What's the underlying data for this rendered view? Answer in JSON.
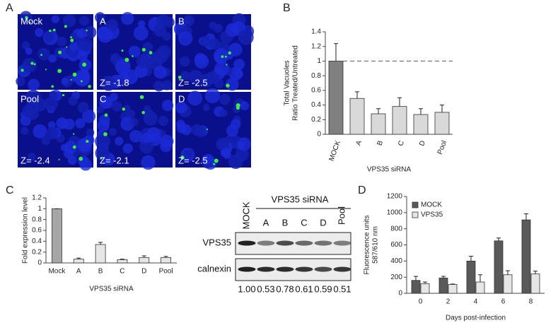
{
  "panel_labels": [
    "A",
    "B",
    "C",
    "D"
  ],
  "microscopy": {
    "tiles": [
      {
        "label": "Mock"
      },
      {
        "label": "A",
        "z": "Z= -1.8"
      },
      {
        "label": "B",
        "z": "Z= -2.5"
      },
      {
        "label": "Pool",
        "z": "Z= -2.4"
      },
      {
        "label": "C",
        "z": "Z= -2.1"
      },
      {
        "label": "D",
        "z": "Z= -2.5"
      }
    ]
  },
  "western_blot": {
    "header": "VPS35 siRNA",
    "lanes": [
      "MOCK",
      "A",
      "B",
      "C",
      "D",
      "Pool"
    ],
    "rows": [
      "VPS35",
      "calnexin"
    ],
    "quantification": [
      "1.00",
      "0.53",
      "0.78",
      "0.61",
      "0.59",
      "0.51"
    ]
  },
  "chart_data": [
    {
      "type": "bar",
      "ylabel": [
        "Total Vacuoles",
        "Ratio Treated/Untreated"
      ],
      "xlabel": "VPS35 siRNA",
      "categories": [
        "MOCK",
        "A",
        "B",
        "C",
        "D",
        "Pool"
      ],
      "values": [
        1.0,
        0.49,
        0.28,
        0.38,
        0.27,
        0.3
      ],
      "errors": [
        0.24,
        0.09,
        0.07,
        0.12,
        0.08,
        0.1
      ],
      "colors": [
        "#808080",
        "#d9d9d9",
        "#d9d9d9",
        "#d9d9d9",
        "#d9d9d9",
        "#d9d9d9"
      ],
      "reference_line": 1,
      "ylim": [
        0,
        1.4
      ],
      "yticks": [
        0,
        0.2,
        0.4,
        0.6,
        0.8,
        1,
        1.2,
        1.4
      ]
    },
    {
      "type": "bar",
      "ylabel": [
        "Fold expression level"
      ],
      "xlabel": "VPS35 siRNA",
      "categories": [
        "Mock",
        "A",
        "B",
        "C",
        "D",
        "Pool"
      ],
      "values": [
        1.0,
        0.07,
        0.34,
        0.06,
        0.1,
        0.1
      ],
      "errors": [
        0,
        0.02,
        0.04,
        0.01,
        0.03,
        0.02
      ],
      "colors": [
        "#a6a6a6",
        "#e6e6e6",
        "#e6e6e6",
        "#e6e6e6",
        "#e6e6e6",
        "#e6e6e6"
      ],
      "ylim": [
        0,
        1.2
      ],
      "yticks": [
        0,
        0.2,
        0.4,
        0.6,
        0.8,
        1,
        1.2
      ]
    },
    {
      "type": "grouped_bar",
      "ylabel": [
        "Fluorescence units",
        "587/610 nm"
      ],
      "xlabel": "Days post-infection",
      "categories": [
        "0",
        "2",
        "4",
        "6",
        "8"
      ],
      "series": [
        {
          "name": "MOCK",
          "color": "#595959",
          "values": [
            160,
            190,
            400,
            650,
            910
          ],
          "errors": [
            50,
            20,
            60,
            35,
            75
          ]
        },
        {
          "name": "VPS35",
          "color": "#e6e6e6",
          "values": [
            120,
            110,
            140,
            230,
            240
          ],
          "errors": [
            20,
            5,
            90,
            50,
            35
          ]
        }
      ],
      "legend": "upper left",
      "ylim": [
        0,
        1200
      ],
      "yticks": [
        0,
        200,
        400,
        600,
        800,
        1000,
        1200
      ]
    }
  ]
}
